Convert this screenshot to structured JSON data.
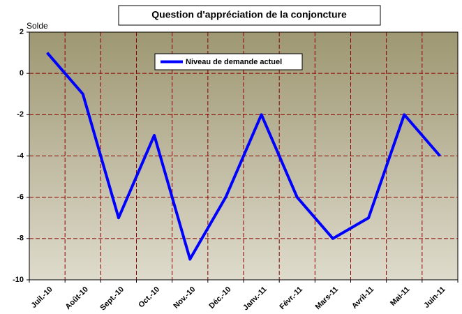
{
  "chart_data": {
    "type": "line",
    "title": "Question d'appréciation de la conjoncture",
    "y_label": "Solde",
    "categories": [
      "Juil.-10",
      "Août-10",
      "Sept.-10",
      "Oct.-10",
      "Nov.-10",
      "Déc.-10",
      "Janv.-11",
      "Févr.-11",
      "Mars-11",
      "Avril-11",
      "Mai-11",
      "Juin-11"
    ],
    "series": [
      {
        "name": "Niveau de demande actuel",
        "color": "#0000ff",
        "values": [
          1,
          -1,
          -7,
          -3,
          -9,
          -6,
          -2,
          -6,
          -8,
          -7,
          -2,
          -4
        ]
      }
    ],
    "ylim": [
      -10,
      2
    ],
    "yticks": [
      -10,
      -8,
      -6,
      -4,
      -2,
      0,
      2
    ],
    "grid": true
  }
}
